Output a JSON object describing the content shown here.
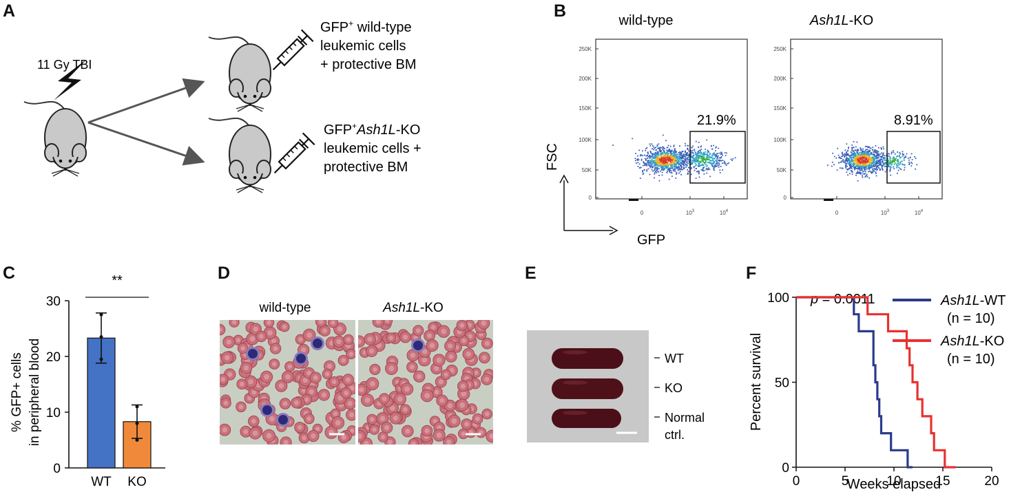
{
  "panels": {
    "A": {
      "label": "A",
      "treatment": "11 Gy TBI",
      "group1": {
        "gfp": "GFP",
        "sup": "+",
        "line1_rest": " wild-type",
        "line2": "leukemic cells",
        "line3": "+ protective BM"
      },
      "group2": {
        "gfp": "GFP",
        "sup": "+",
        "line1_italic": "Ash1L",
        "line1_rest": "-KO",
        "line2": "leukemic cells +",
        "line3": "protective BM"
      }
    },
    "B": {
      "label": "B",
      "plot1": {
        "title": "wild-type",
        "gate_pct": "21.9%"
      },
      "plot2": {
        "title_italic": "Ash1L",
        "title_rest": "-KO",
        "gate_pct": "8.91%"
      },
      "y_axis": "FSC",
      "x_axis": "GFP",
      "y_ticks": [
        "250K",
        "200K",
        "150K",
        "100K",
        "50K",
        "0"
      ],
      "x_ticks": [
        "0",
        "10",
        "10"
      ],
      "x_tick_sup": [
        "",
        "3",
        "4"
      ]
    },
    "C": {
      "label": "C",
      "ylabel_line1": "% GFP+ cells",
      "ylabel_line2": "in peripheral blood",
      "significance": "**"
    },
    "D": {
      "label": "D",
      "left_title": "wild-type",
      "right_title_italic": "Ash1L",
      "right_title_rest": "-KO"
    },
    "E": {
      "label": "E",
      "labels": [
        "WT",
        "KO",
        "Normal",
        "ctrl."
      ]
    },
    "F": {
      "label": "F",
      "p_prefix": "p",
      "p_value": " = 0.0011",
      "ylabel": "Percent survival",
      "xlabel": "Weeks elapsed",
      "legend": [
        {
          "italic": "Ash1L",
          "rest": "-WT",
          "n": "(n = 10)",
          "color": "#2b3a8c"
        },
        {
          "italic": "Ash1L",
          "rest": "-KO",
          "n": "(n = 10)",
          "color": "#e8312f"
        }
      ]
    }
  },
  "chart_data": [
    {
      "type": "bar",
      "categories": [
        "WT",
        "KO"
      ],
      "values": [
        23.3,
        8.3
      ],
      "errors": [
        4.5,
        3.0
      ],
      "points": [
        [
          27.5,
          23.5,
          19.5
        ],
        [
          11.0,
          8.0,
          5.0
        ]
      ],
      "colors": [
        "#4472c4",
        "#f08a3a"
      ],
      "yticks": [
        0,
        10,
        20,
        30
      ],
      "ylim": [
        0,
        30
      ]
    },
    {
      "type": "line",
      "step": true,
      "xlim": [
        0,
        20
      ],
      "ylim": [
        0,
        100
      ],
      "xticks": [
        0,
        5,
        10,
        15,
        20
      ],
      "yticks": [
        0,
        50,
        100
      ],
      "series": [
        {
          "name": "Ash1L-WT",
          "color": "#2b3a8c",
          "x": [
            0,
            5.9,
            5.9,
            6.4,
            6.4,
            7.9,
            7.9,
            8.1,
            8.1,
            8.3,
            8.3,
            8.5,
            8.5,
            8.7,
            8.7,
            9.7,
            9.7,
            11.4,
            11.4,
            11.9,
            11.9
          ],
          "y": [
            100,
            100,
            90,
            90,
            80,
            80,
            60,
            60,
            50,
            50,
            40,
            40,
            30,
            30,
            20,
            20,
            10,
            10,
            0,
            0,
            0
          ]
        },
        {
          "name": "Ash1L-KO",
          "color": "#e8312f",
          "x": [
            0,
            7.3,
            7.3,
            9.4,
            9.4,
            11.3,
            11.3,
            11.6,
            11.6,
            11.9,
            11.9,
            12.4,
            12.4,
            12.9,
            12.9,
            13.8,
            13.8,
            14.1,
            14.1,
            15.2,
            15.2,
            16.3,
            16.3
          ],
          "y": [
            100,
            100,
            90,
            90,
            80,
            80,
            70,
            70,
            60,
            60,
            50,
            50,
            40,
            40,
            30,
            30,
            20,
            20,
            10,
            10,
            0,
            0,
            0
          ]
        }
      ]
    }
  ]
}
